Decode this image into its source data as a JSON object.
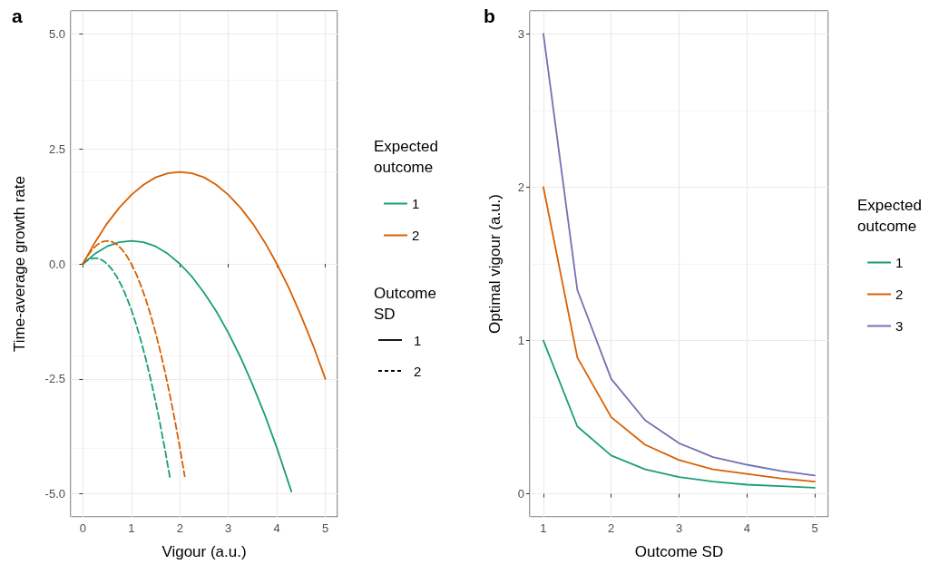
{
  "chart_data": [
    {
      "type": "line",
      "title": "a",
      "xlabel": "Vigour (a.u.)",
      "ylabel": "Time-average growth rate",
      "legend_title": "Expected outcome",
      "legend": "right",
      "grid": true,
      "xlim": [
        -0.25,
        5.25
      ],
      "xticks": [
        0,
        1,
        2,
        3,
        4,
        5
      ],
      "ylim": [
        -5.5,
        5.5
      ],
      "yticks": [
        {
          "value": -5,
          "label": "-5.0"
        },
        {
          "value": -2.5,
          "label": "-2.5"
        },
        {
          "value": 0,
          "label": "0.0"
        },
        {
          "value": 2.5,
          "label": "2.5"
        },
        {
          "value": 5,
          "label": "5.0"
        }
      ],
      "annotations": [
        "Outcome SD",
        "1",
        "2"
      ],
      "series": [
        {
          "name": "1",
          "color": "#1b9e77",
          "line_style": "solid",
          "x": [
            0,
            0.25,
            0.5,
            0.75,
            1,
            1.25,
            1.5,
            1.75,
            2,
            2.25,
            2.5,
            2.75,
            3,
            3.25,
            3.5,
            3.75,
            4,
            4.3
          ],
          "values": [
            0,
            0.22,
            0.38,
            0.47,
            0.5,
            0.47,
            0.38,
            0.22,
            0,
            -0.28,
            -0.63,
            -1.03,
            -1.5,
            -2.03,
            -2.63,
            -3.28,
            -4,
            -4.95
          ]
        },
        {
          "name": "2",
          "color": "#d95f02",
          "line_style": "solid",
          "x": [
            0,
            0.25,
            0.5,
            0.75,
            1,
            1.25,
            1.5,
            1.75,
            2,
            2.25,
            2.5,
            2.75,
            3,
            3.25,
            3.5,
            3.75,
            4,
            4.25,
            4.5,
            4.75,
            5
          ],
          "values": [
            0,
            0.47,
            0.88,
            1.22,
            1.5,
            1.72,
            1.88,
            1.97,
            2,
            1.97,
            1.88,
            1.72,
            1.5,
            1.22,
            0.88,
            0.47,
            0,
            -0.53,
            -1.13,
            -1.78,
            -2.5
          ]
        },
        {
          "color": "#1b9e77",
          "line_style": "dashed",
          "x": [
            0,
            0.1,
            0.2,
            0.3,
            0.4,
            0.5,
            0.6,
            0.7,
            0.8,
            0.9,
            1,
            1.1,
            1.2,
            1.3,
            1.4,
            1.5,
            1.6,
            1.7,
            1.8
          ],
          "values": [
            0,
            0.08,
            0.12,
            0.12,
            0.08,
            0,
            -0.12,
            -0.28,
            -0.48,
            -0.72,
            -1,
            -1.32,
            -1.68,
            -2.08,
            -2.52,
            -3,
            -3.52,
            -4.08,
            -4.68
          ]
        },
        {
          "color": "#d95f02",
          "line_style": "dashed",
          "x": [
            0,
            0.1,
            0.2,
            0.3,
            0.4,
            0.5,
            0.6,
            0.7,
            0.8,
            0.9,
            1,
            1.1,
            1.2,
            1.3,
            1.4,
            1.5,
            1.6,
            1.7,
            1.8,
            1.9,
            2,
            2.1
          ],
          "values": [
            0,
            0.18,
            0.32,
            0.42,
            0.48,
            0.5,
            0.48,
            0.42,
            0.32,
            0.18,
            0,
            -0.22,
            -0.48,
            -0.78,
            -1.12,
            -1.5,
            -1.92,
            -2.38,
            -2.88,
            -3.42,
            -4,
            -4.62
          ]
        }
      ]
    },
    {
      "type": "line",
      "title": "b",
      "xlabel": "Outcome SD",
      "ylabel": "Optimal vigour (a.u.)",
      "legend_title": "Expected outcome",
      "legend": "right",
      "grid": true,
      "xlim": [
        0.8,
        5.2
      ],
      "xticks": [
        1,
        2,
        3,
        4,
        5
      ],
      "ylim": [
        -0.15,
        3.15
      ],
      "yticks": [
        0,
        1,
        2,
        3
      ],
      "x": [
        1,
        1.5,
        2,
        2.5,
        3,
        3.5,
        4,
        4.5,
        5
      ],
      "series": [
        {
          "name": "1",
          "color": "#1b9e77",
          "values": [
            1,
            0.44,
            0.25,
            0.16,
            0.11,
            0.08,
            0.06,
            0.05,
            0.04
          ]
        },
        {
          "name": "2",
          "color": "#d95f02",
          "values": [
            2,
            0.89,
            0.5,
            0.32,
            0.22,
            0.16,
            0.13,
            0.1,
            0.08
          ]
        },
        {
          "name": "3",
          "color": "#7570b3",
          "values": [
            3,
            1.33,
            0.75,
            0.48,
            0.33,
            0.24,
            0.19,
            0.15,
            0.12
          ]
        }
      ]
    }
  ]
}
